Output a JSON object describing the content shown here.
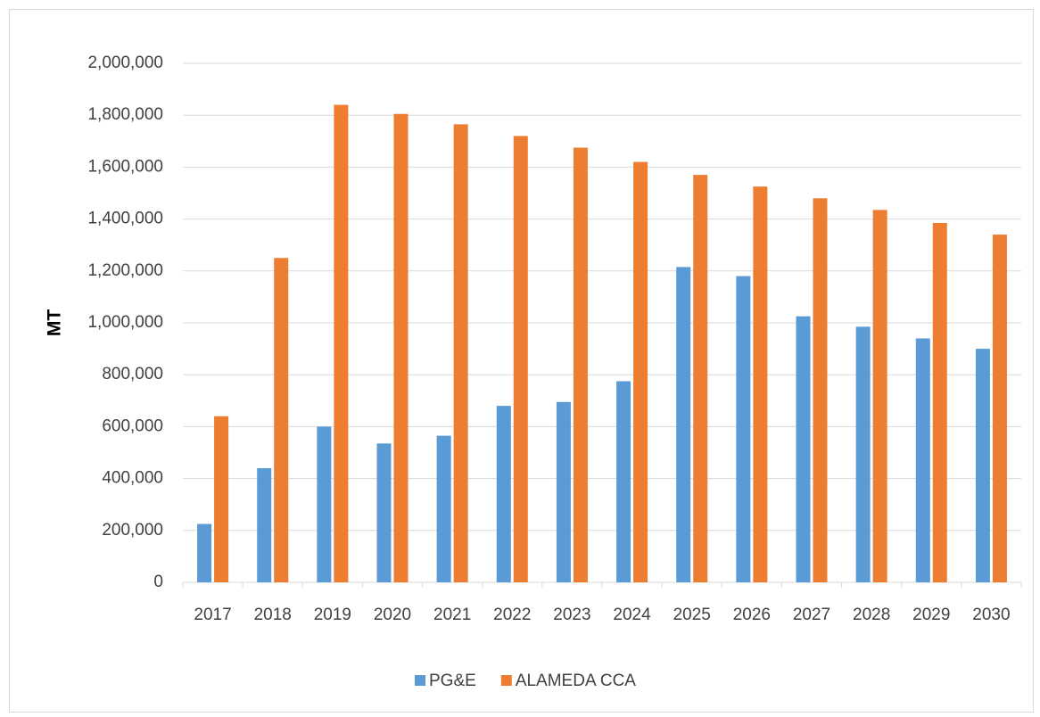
{
  "chart_data": {
    "type": "bar",
    "y_label": "MT",
    "categories": [
      "2017",
      "2018",
      "2019",
      "2020",
      "2021",
      "2022",
      "2023",
      "2024",
      "2025",
      "2026",
      "2027",
      "2028",
      "2029",
      "2030"
    ],
    "series": [
      {
        "name": "PG&E",
        "color": "#5b9bd5",
        "values": [
          225000,
          440000,
          600000,
          535000,
          565000,
          680000,
          695000,
          775000,
          1215000,
          1180000,
          1025000,
          985000,
          940000,
          900000
        ]
      },
      {
        "name": "ALAMEDA CCA",
        "color": "#ed7d31",
        "values": [
          640000,
          1250000,
          1840000,
          1805000,
          1765000,
          1720000,
          1675000,
          1620000,
          1570000,
          1525000,
          1480000,
          1435000,
          1385000,
          1340000
        ]
      }
    ],
    "ylim": [
      0,
      2000000
    ],
    "yticks": [
      0,
      {
        "value": 200000,
        "label": "200,000"
      },
      {
        "value": 400000,
        "label": "400,000"
      },
      {
        "value": 600000,
        "label": "600,000"
      },
      {
        "value": 800000,
        "label": "800,000"
      },
      {
        "value": 1000000,
        "label": "1,000,000"
      },
      {
        "value": 1200000,
        "label": "1,200,000"
      },
      {
        "value": 1400000,
        "label": "1,400,000"
      },
      {
        "value": 1600000,
        "label": "1,600,000"
      },
      {
        "value": 1800000,
        "label": "1,800,000"
      },
      {
        "value": 2000000,
        "label": "2,000,000"
      }
    ],
    "grid": true,
    "legend": "bottom"
  }
}
